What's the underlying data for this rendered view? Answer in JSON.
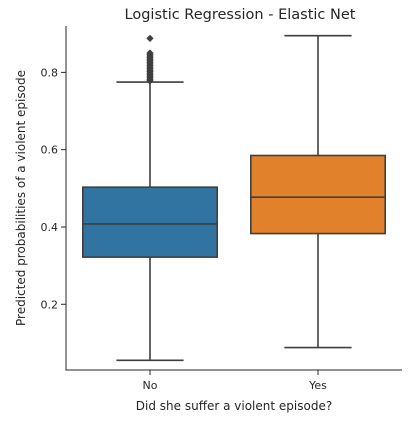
{
  "chart_data": {
    "type": "boxplot",
    "title": "Logistic Regression - Elastic Net",
    "xlabel": "Did she suffer a violent episode?",
    "ylabel": "Predicted probabilities of a violent episode",
    "ylim": [
      0.03,
      0.92
    ],
    "yticks": [
      0.2,
      0.4,
      0.6,
      0.8
    ],
    "ytick_labels": [
      "0.2",
      "0.4",
      "0.6",
      "0.8"
    ],
    "grid": false,
    "categories": [
      "No",
      "Yes"
    ],
    "colors": [
      "#3274a1",
      "#e1812c"
    ],
    "edge_color": "#3f3f3f",
    "boxes": [
      {
        "whisker_low": 0.055,
        "q1": 0.322,
        "median": 0.408,
        "q3": 0.503,
        "whisker_high": 0.775,
        "outliers": [
          0.778,
          0.782,
          0.786,
          0.79,
          0.794,
          0.798,
          0.802,
          0.806,
          0.81,
          0.814,
          0.818,
          0.822,
          0.826,
          0.83,
          0.834,
          0.838,
          0.842,
          0.846,
          0.85,
          0.888
        ]
      },
      {
        "whisker_low": 0.088,
        "q1": 0.383,
        "median": 0.477,
        "q3": 0.585,
        "whisker_high": 0.895,
        "outliers": []
      }
    ]
  }
}
